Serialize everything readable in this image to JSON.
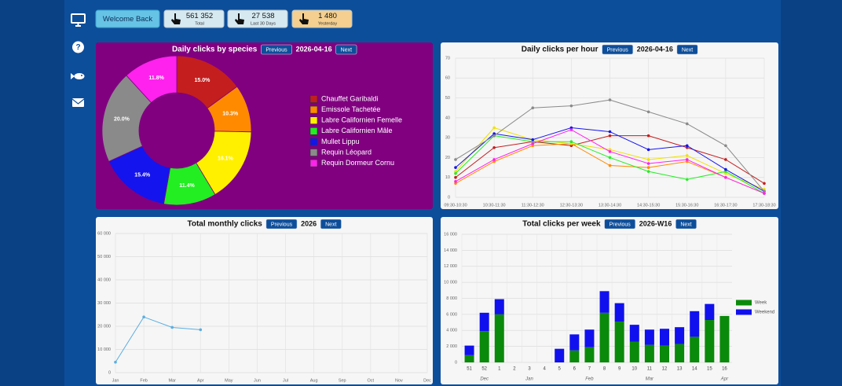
{
  "header": {
    "welcome": "Welcome Back",
    "stats": [
      {
        "value": "561 352",
        "label": "Total"
      },
      {
        "value": "27 538",
        "label": "Last 30 Days"
      },
      {
        "value": "1 480",
        "label": "Yesterday"
      }
    ]
  },
  "chart_data": [
    {
      "type": "donut",
      "title": "Daily clicks by species",
      "prev_button": "Previous",
      "period": "2026-04-16",
      "next_button": "Next",
      "categories": [
        "Chauffet Garibaldi",
        "Emissole Tachetée",
        "Labre Californien Femelle",
        "Labre Californien Mâle",
        "Mullet Lippu",
        "Requin Léopard",
        "Requin Dormeur Cornu"
      ],
      "values": [
        15.0,
        10.3,
        16.1,
        11.4,
        15.4,
        20.0,
        11.8
      ],
      "value_labels": [
        "15.0%",
        "10.3%",
        "16.1%",
        "11.4%",
        "15.4%",
        "20.0%",
        "11.8%"
      ],
      "colors": [
        "#c41e1e",
        "#ff8a00",
        "#fff000",
        "#22ee22",
        "#1414ee",
        "#8a8a8a",
        "#ff22ee"
      ],
      "legend": "right"
    },
    {
      "type": "line",
      "title": "Daily clicks per hour",
      "prev_button": "Previous",
      "period": "2026-04-16",
      "next_button": "Next",
      "categories": [
        "09:30-10:30",
        "10:30-11:30",
        "11:30-12:30",
        "12:30-13:30",
        "13:30-14:30",
        "14:30-15:30",
        "15:30-16:30",
        "16:30-17:30",
        "17:30-18:30"
      ],
      "series": [
        {
          "color": "#c41e1e",
          "values": [
            10,
            25,
            28,
            26,
            31,
            31,
            25,
            19,
            7
          ]
        },
        {
          "color": "#ff8a00",
          "values": [
            7,
            18,
            26,
            27,
            16,
            15,
            18,
            10,
            2
          ]
        },
        {
          "color": "#f0e000",
          "values": [
            13,
            35,
            29,
            27,
            24,
            19,
            21,
            12,
            4
          ]
        },
        {
          "color": "#22ee22",
          "values": [
            12,
            31,
            28,
            28,
            20,
            13,
            9,
            13,
            2
          ]
        },
        {
          "color": "#1414ee",
          "values": [
            15,
            32,
            29,
            35,
            33,
            24,
            26,
            14,
            3
          ]
        },
        {
          "color": "#8a8a8a",
          "values": [
            19,
            31,
            45,
            46,
            49,
            43,
            37,
            26,
            3
          ]
        },
        {
          "color": "#ff22ee",
          "values": [
            8,
            19,
            27,
            34,
            23,
            17,
            19,
            10,
            2
          ]
        }
      ],
      "ylim": [
        0,
        70
      ],
      "yticks": [
        0,
        10,
        20,
        30,
        40,
        50,
        60,
        70
      ],
      "grid": true
    },
    {
      "type": "line",
      "title": "Total monthly clicks",
      "prev_button": "Previous",
      "period": "2026",
      "next_button": "Next",
      "categories": [
        "Jan",
        "Feb",
        "Mar",
        "Apr",
        "May",
        "Jun",
        "Jul",
        "Aug",
        "Sep",
        "Oct",
        "Nov",
        "Dec"
      ],
      "series": [
        {
          "color": "#5aaee0",
          "values": [
            4500,
            24000,
            19500,
            18500,
            null,
            null,
            null,
            null,
            null,
            null,
            null,
            null
          ]
        }
      ],
      "ylim": [
        0,
        60000
      ],
      "yticks": [
        0,
        {
          "value": 10000,
          "label": "10 000"
        },
        {
          "value": 20000,
          "label": "20 000"
        },
        {
          "value": 30000,
          "label": "30 000"
        },
        {
          "value": 40000,
          "label": "40 000"
        },
        {
          "value": 50000,
          "label": "50 000"
        },
        {
          "value": 60000,
          "label": "60 000"
        }
      ],
      "grid": true
    },
    {
      "type": "stacked_bar",
      "title": "Total clicks per week",
      "prev_button": "Previous",
      "period": "2026-W16",
      "next_button": "Next",
      "categories": [
        "51",
        "52",
        "1",
        "2",
        "3",
        "4",
        "5",
        "6",
        "7",
        "8",
        "9",
        "10",
        "11",
        "12",
        "13",
        "14",
        "15",
        "16"
      ],
      "month_labels": [
        null,
        "Dec",
        null,
        null,
        "Jan",
        null,
        null,
        null,
        "Feb",
        null,
        null,
        null,
        "Mar",
        null,
        null,
        null,
        null,
        "Apr"
      ],
      "series": [
        {
          "name": "Week",
          "color": "#0a8a0a",
          "values": [
            900,
            3900,
            6000,
            0,
            0,
            0,
            0,
            1500,
            1900,
            6200,
            5100,
            2600,
            2200,
            2100,
            2300,
            3200,
            5300,
            5800
          ]
        },
        {
          "name": "Weekend",
          "color": "#1010ee",
          "values": [
            1200,
            2300,
            1900,
            0,
            0,
            0,
            1700,
            2000,
            2200,
            2700,
            2300,
            2100,
            1900,
            2100,
            2100,
            3200,
            2000,
            0
          ]
        }
      ],
      "ylim": [
        0,
        16000
      ],
      "yticks": [
        0,
        {
          "value": 2000,
          "label": "2 000"
        },
        {
          "value": 4000,
          "label": "4 000"
        },
        {
          "value": 6000,
          "label": "6 000"
        },
        {
          "value": 8000,
          "label": "8 000"
        },
        {
          "value": 10000,
          "label": "10 000"
        },
        {
          "value": 12000,
          "label": "12 000"
        },
        {
          "value": 14000,
          "label": "14 000"
        },
        {
          "value": 16000,
          "label": "16 000"
        }
      ],
      "grid": true,
      "legend": "right"
    }
  ]
}
